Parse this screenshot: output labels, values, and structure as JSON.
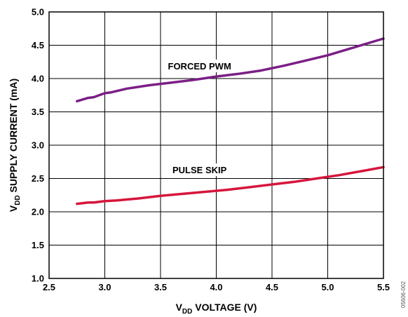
{
  "chart_data": {
    "type": "line",
    "title": "",
    "xlabel": {
      "prefix": "V",
      "sub": "DD",
      "suffix": " VOLTAGE (V)"
    },
    "ylabel": {
      "prefix": "V",
      "sub": "DD",
      "suffix": " SUPPLY CURRENT (mA)"
    },
    "xlim": [
      2.5,
      5.5
    ],
    "ylim": [
      1.0,
      5.0
    ],
    "x_ticks": [
      "2.5",
      "3.0",
      "3.5",
      "4.0",
      "4.5",
      "5.0",
      "5.5"
    ],
    "y_ticks": [
      "1.0",
      "1.5",
      "2.0",
      "2.5",
      "3.0",
      "3.5",
      "4.0",
      "4.5",
      "5.0"
    ],
    "grid": true,
    "legend": "none",
    "series": [
      {
        "name": "FORCED PWM",
        "color": "#7b1f86",
        "x": [
          2.75,
          2.85,
          2.9,
          3.0,
          3.05,
          3.2,
          3.4,
          3.6,
          3.8,
          4.0,
          4.2,
          4.4,
          4.6,
          4.8,
          5.0,
          5.2,
          5.5
        ],
        "y": [
          3.66,
          3.71,
          3.72,
          3.78,
          3.79,
          3.85,
          3.9,
          3.94,
          3.98,
          4.03,
          4.07,
          4.12,
          4.19,
          4.27,
          4.35,
          4.45,
          4.6
        ]
      },
      {
        "name": "PULSE SKIP",
        "color": "#d6163c",
        "x": [
          2.75,
          2.85,
          2.9,
          3.0,
          3.1,
          3.3,
          3.5,
          3.7,
          3.9,
          4.1,
          4.3,
          4.5,
          4.7,
          4.9,
          5.1,
          5.3,
          5.5
        ],
        "y": [
          2.12,
          2.14,
          2.14,
          2.16,
          2.17,
          2.2,
          2.24,
          2.27,
          2.3,
          2.33,
          2.37,
          2.41,
          2.45,
          2.5,
          2.55,
          2.61,
          2.67
        ]
      }
    ],
    "figure_code": "05606-002"
  }
}
